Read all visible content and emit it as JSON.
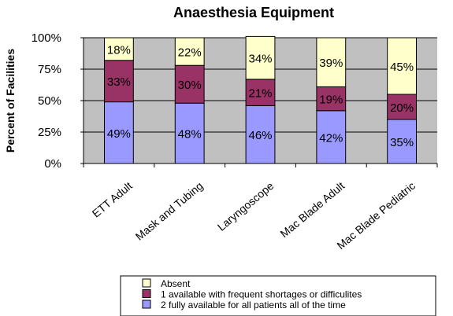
{
  "chart_data": {
    "type": "bar",
    "stacked": true,
    "percent_stacked": true,
    "title": "Anaesthesia Equipment",
    "xlabel": "",
    "ylabel": "Percent of Facilities",
    "ylim": [
      0,
      100
    ],
    "yticks": [
      "0%",
      "25%",
      "50%",
      "75%",
      "100%"
    ],
    "grid": true,
    "legend_position": "bottom",
    "categories": [
      "ETT Adult",
      "Mask and Tubing",
      "Laryngoscope",
      "Mac Blade Adult",
      "Mac Blade Pediatric"
    ],
    "series": [
      {
        "name": "2 fully available for all patients all of the time",
        "color": "#9999ff",
        "values": [
          49,
          48,
          46,
          42,
          35
        ],
        "labels": [
          "49%",
          "48%",
          "46%",
          "42%",
          "35%"
        ]
      },
      {
        "name": "1 available with frequent shortages or difficulites",
        "color": "#993366",
        "values": [
          33,
          30,
          21,
          19,
          20
        ],
        "labels": [
          "33%",
          "30%",
          "21%",
          "19%",
          "20%"
        ]
      },
      {
        "name": "Absent",
        "color": "#ffffcc",
        "values": [
          18,
          22,
          34,
          39,
          45
        ],
        "labels": [
          "18%",
          "22%",
          "34%",
          "39%",
          "45%"
        ]
      }
    ],
    "legend_order": [
      2,
      1,
      0
    ],
    "plot_background": "#c0c0c0"
  }
}
